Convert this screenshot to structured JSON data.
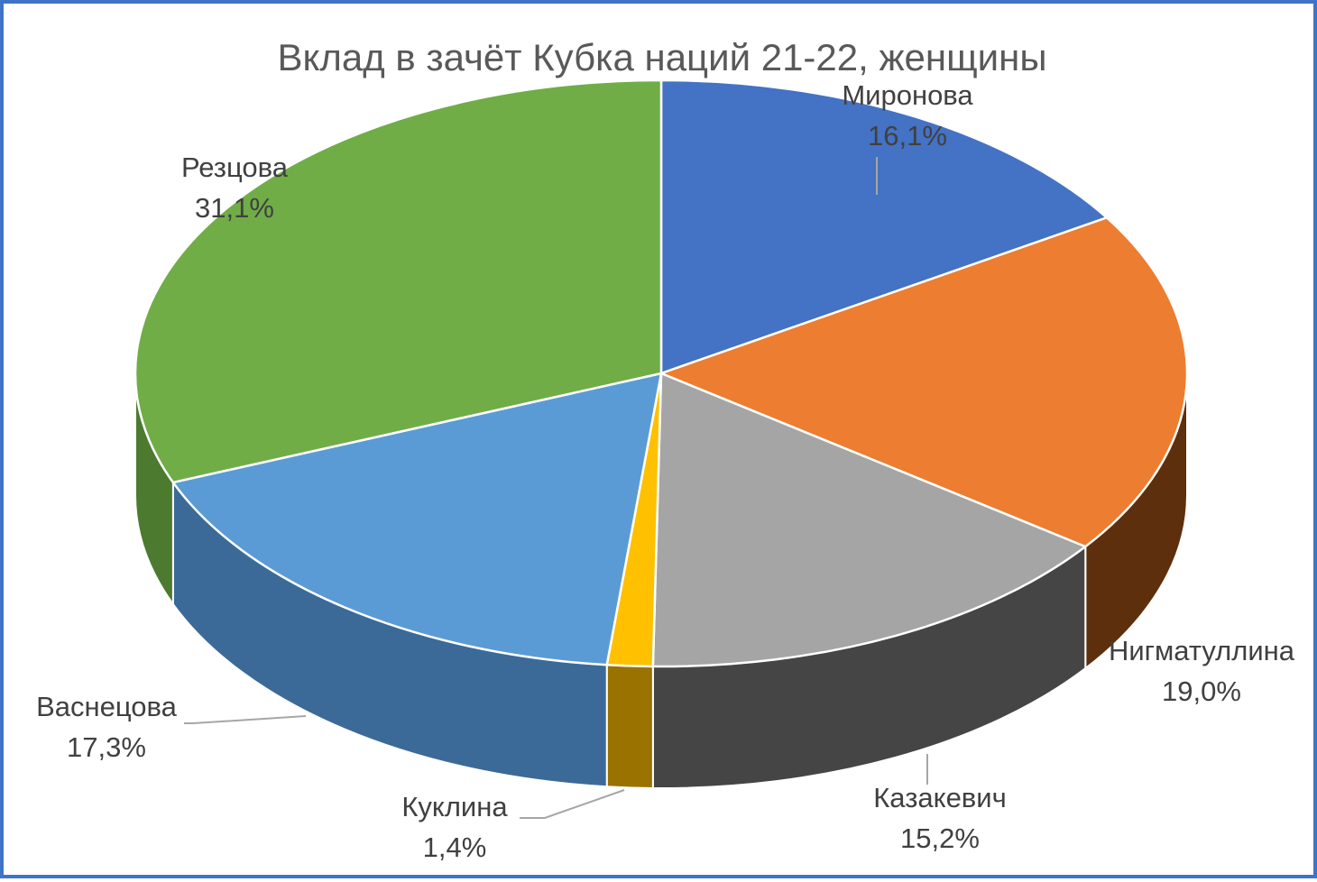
{
  "chart_data": {
    "type": "pie",
    "style": "3d",
    "title": "Вклад в зачёт Кубка наций 21-22, женщины",
    "slices": [
      {
        "label": "Миронова",
        "value": 16.1,
        "display": "16,1%",
        "color": "#4472c4",
        "side": "#2f528f"
      },
      {
        "label": "Нигматуллина",
        "value": 19.0,
        "display": "19,0%",
        "color": "#ed7d31",
        "side": "#5e2f0c"
      },
      {
        "label": "Казакевич",
        "value": 15.2,
        "display": "15,2%",
        "color": "#a5a5a5",
        "side": "#454545"
      },
      {
        "label": "Куклина",
        "value": 1.4,
        "display": "1,4%",
        "color": "#ffc000",
        "side": "#9a7200"
      },
      {
        "label": "Васнецова",
        "value": 17.3,
        "display": "17,3%",
        "color": "#5b9bd5",
        "side": "#3b6a98"
      },
      {
        "label": "Резцова",
        "value": 31.1,
        "display": "31,1%",
        "color": "#70ad47",
        "side": "#4c7a2f"
      }
    ]
  }
}
